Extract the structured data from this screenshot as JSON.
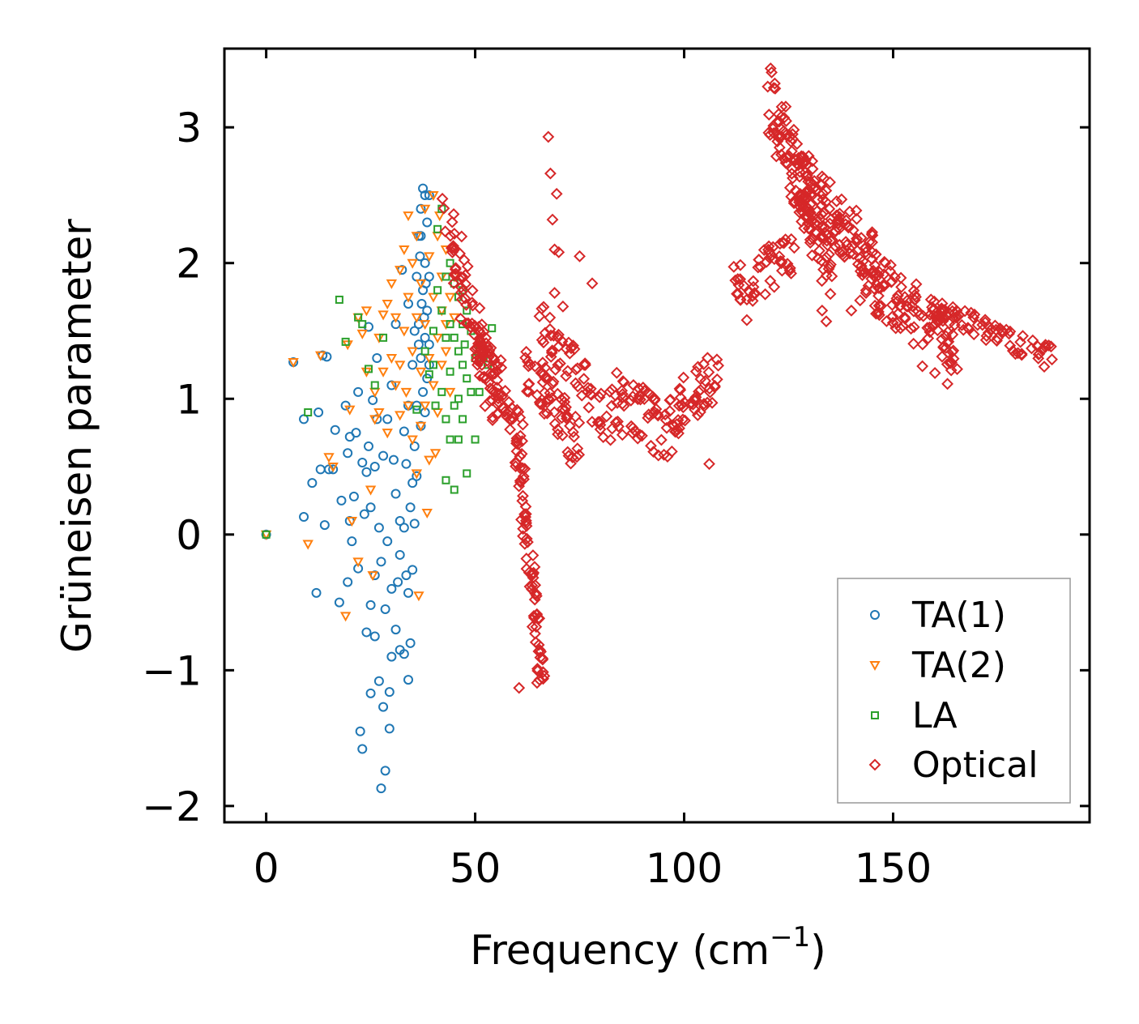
{
  "chart_data": {
    "type": "scatter",
    "title": "",
    "xlabel": "Frequency (cm",
    "xlabel_sup": "−1",
    "xlabel_close": ")",
    "ylabel": "Grüneisen parameter",
    "xlim": [
      -10,
      197
    ],
    "ylim": [
      -2.12,
      3.58
    ],
    "xticks": [
      0,
      50,
      100,
      150
    ],
    "xtick_labels": [
      "0",
      "50",
      "100",
      "150"
    ],
    "yticks": [
      -2,
      -1,
      0,
      1,
      2,
      3
    ],
    "ytick_labels": [
      "−2",
      "−1",
      "0",
      "1",
      "2",
      "3"
    ],
    "legend_position": "lower-right",
    "series": [
      {
        "name": "TA(1)",
        "marker": "circle",
        "color": "#1f77b4",
        "points": [
          [
            0,
            0
          ],
          [
            6.5,
            1.27
          ],
          [
            9,
            0.85
          ],
          [
            9,
            0.13
          ],
          [
            11,
            0.38
          ],
          [
            12,
            -0.43
          ],
          [
            12.5,
            0.9
          ],
          [
            13,
            0.48
          ],
          [
            13.5,
            1.32
          ],
          [
            14,
            0.07
          ],
          [
            14.5,
            1.31
          ],
          [
            15,
            0.48
          ],
          [
            16,
            0.48
          ],
          [
            16.5,
            0.77
          ],
          [
            17.5,
            -0.5
          ],
          [
            18,
            0.25
          ],
          [
            19,
            0.95
          ],
          [
            19.5,
            0.6
          ],
          [
            19.5,
            -0.35
          ],
          [
            20,
            0.72
          ],
          [
            20,
            0.1
          ],
          [
            20.5,
            -0.05
          ],
          [
            21,
            0.28
          ],
          [
            21.5,
            0.75
          ],
          [
            22,
            1.05
          ],
          [
            22,
            -0.25
          ],
          [
            22.5,
            -1.45
          ],
          [
            23,
            0.53
          ],
          [
            23,
            -1.58
          ],
          [
            23.5,
            0.15
          ],
          [
            24,
            0.46
          ],
          [
            24,
            -0.72
          ],
          [
            24.5,
            1.53
          ],
          [
            24.5,
            0.65
          ],
          [
            25,
            0.2
          ],
          [
            25,
            -0.52
          ],
          [
            25,
            -1.17
          ],
          [
            25.5,
            0.99
          ],
          [
            26,
            0.5
          ],
          [
            26,
            -0.3
          ],
          [
            26,
            -0.75
          ],
          [
            26.5,
            1.3
          ],
          [
            26.5,
            0.85
          ],
          [
            27,
            -1.08
          ],
          [
            27,
            0.05
          ],
          [
            27.5,
            -0.2
          ],
          [
            27.5,
            -1.87
          ],
          [
            28,
            0.58
          ],
          [
            28,
            -1.27
          ],
          [
            28.5,
            -0.55
          ],
          [
            28.5,
            -1.74
          ],
          [
            29,
            0.85
          ],
          [
            29,
            -0.05
          ],
          [
            29.5,
            -1.43
          ],
          [
            29.5,
            -1.16
          ],
          [
            30,
            1.1
          ],
          [
            30,
            -0.4
          ],
          [
            30,
            -0.9
          ],
          [
            30.5,
            0.55
          ],
          [
            31,
            1.55
          ],
          [
            31,
            0.3
          ],
          [
            31,
            -0.7
          ],
          [
            31.5,
            -0.35
          ],
          [
            32,
            -0.85
          ],
          [
            32,
            0.1
          ],
          [
            32,
            -0.15
          ],
          [
            32.5,
            1.95
          ],
          [
            33,
            0.76
          ],
          [
            33,
            -0.88
          ],
          [
            33,
            0.05
          ],
          [
            33.5,
            0.52
          ],
          [
            33.5,
            -0.3
          ],
          [
            34,
            1.7
          ],
          [
            34,
            -0.43
          ],
          [
            34,
            -1.07
          ],
          [
            34,
            0.95
          ],
          [
            34.5,
            0.2
          ],
          [
            34.5,
            -0.8
          ],
          [
            35,
            0.38
          ],
          [
            35,
            1.25
          ],
          [
            35,
            -0.26
          ],
          [
            35.5,
            1.5
          ],
          [
            35.5,
            0.65
          ],
          [
            35.5,
            0.08
          ],
          [
            36,
            1.9
          ],
          [
            36,
            0.95
          ],
          [
            36,
            0.43
          ],
          [
            36.5,
            1.55
          ],
          [
            36.5,
            2.2
          ],
          [
            37,
            1.3
          ],
          [
            37,
            0.8
          ],
          [
            37,
            2.4
          ],
          [
            37.5,
            1.8
          ],
          [
            37.5,
            1.05
          ],
          [
            37.5,
            2.55
          ],
          [
            38,
            2.0
          ],
          [
            38,
            1.45
          ],
          [
            38,
            0.9
          ],
          [
            38.5,
            2.3
          ],
          [
            38.5,
            1.65
          ],
          [
            38.5,
            1.15
          ],
          [
            39,
            2.5
          ],
          [
            39,
            1.9
          ],
          [
            39,
            1.4
          ],
          [
            39,
            1.25
          ],
          [
            36.8,
            2.05
          ],
          [
            37.2,
            1.7
          ],
          [
            37.8,
            1.6
          ],
          [
            38.2,
            1.85
          ],
          [
            36.5,
            1.4
          ],
          [
            37,
            2.2
          ],
          [
            38,
            2.5
          ]
        ]
      },
      {
        "name": "TA(2)",
        "marker": "triangle_down",
        "color": "#ff7f0e",
        "points": [
          [
            0,
            0
          ],
          [
            6.5,
            1.27
          ],
          [
            10,
            -0.07
          ],
          [
            13,
            1.32
          ],
          [
            15,
            0.57
          ],
          [
            16,
            0.5
          ],
          [
            19,
            -0.6
          ],
          [
            19.5,
            1.4
          ],
          [
            20,
            0.92
          ],
          [
            20.5,
            0.1
          ],
          [
            22,
            -0.2
          ],
          [
            22,
            1.6
          ],
          [
            23,
            1.48
          ],
          [
            24,
            1.2
          ],
          [
            24,
            1.65
          ],
          [
            25,
            0.33
          ],
          [
            25.5,
            -0.3
          ],
          [
            26,
            1.05
          ],
          [
            26,
            0.85
          ],
          [
            27,
            0.9
          ],
          [
            27,
            1.45
          ],
          [
            28,
            1.62
          ],
          [
            28,
            1.2
          ],
          [
            29,
            1.7
          ],
          [
            29,
            0.75
          ],
          [
            30,
            1.85
          ],
          [
            30,
            1.3
          ],
          [
            31,
            1.1
          ],
          [
            31,
            1.6
          ],
          [
            32,
            1.25
          ],
          [
            32,
            1.95
          ],
          [
            32,
            0.88
          ],
          [
            33,
            1.5
          ],
          [
            33,
            2.1
          ],
          [
            33.5,
            1.05
          ],
          [
            34,
            1.75
          ],
          [
            34,
            2.35
          ],
          [
            34,
            0.95
          ],
          [
            35,
            1.35
          ],
          [
            35,
            0.7
          ],
          [
            35,
            2.0
          ],
          [
            36,
            1.6
          ],
          [
            36,
            2.2
          ],
          [
            36,
            0.45
          ],
          [
            36.5,
            -0.45
          ],
          [
            37,
            1.2
          ],
          [
            37,
            1.85
          ],
          [
            37,
            0.8
          ],
          [
            38,
            2.4
          ],
          [
            38,
            1.55
          ],
          [
            38,
            0.95
          ],
          [
            38.5,
            0.16
          ],
          [
            39,
            2.05
          ],
          [
            39,
            1.3
          ],
          [
            39,
            0.55
          ],
          [
            40,
            2.5
          ],
          [
            40,
            1.75
          ],
          [
            40,
            1.1
          ],
          [
            40.5,
            0.6
          ],
          [
            41,
            2.2
          ],
          [
            41,
            1.45
          ],
          [
            41,
            0.9
          ],
          [
            41.5,
            2.35
          ],
          [
            42,
            1.65
          ],
          [
            42,
            1.9
          ],
          [
            42,
            1.25
          ],
          [
            43,
            2.1
          ],
          [
            43,
            1.55
          ],
          [
            43,
            1.35
          ],
          [
            44,
            1.75
          ],
          [
            44,
            1.05
          ],
          [
            45,
            1.6
          ],
          [
            45,
            1.9
          ]
        ]
      },
      {
        "name": "LA",
        "marker": "square",
        "color": "#2ca02c",
        "points": [
          [
            0,
            0
          ],
          [
            10,
            0.9
          ],
          [
            17.5,
            1.73
          ],
          [
            19,
            1.42
          ],
          [
            22,
            1.6
          ],
          [
            23,
            1.55
          ],
          [
            24.5,
            1.22
          ],
          [
            26,
            1.1
          ],
          [
            28,
            1.45
          ],
          [
            36,
            0.92
          ],
          [
            38,
            1.35
          ],
          [
            39,
            1.18
          ],
          [
            40,
            1.5
          ],
          [
            40,
            1.25
          ],
          [
            40.5,
            0.95
          ],
          [
            41,
            2.25
          ],
          [
            41,
            1.8
          ],
          [
            42,
            2.4
          ],
          [
            42,
            1.65
          ],
          [
            42,
            1.05
          ],
          [
            43,
            1.9
          ],
          [
            43,
            1.45
          ],
          [
            43,
            0.85
          ],
          [
            43,
            0.4
          ],
          [
            44,
            2.0
          ],
          [
            44,
            1.55
          ],
          [
            44,
            1.2
          ],
          [
            44,
            0.7
          ],
          [
            45,
            1.85
          ],
          [
            45,
            1.45
          ],
          [
            45,
            0.95
          ],
          [
            45,
            0.33
          ],
          [
            46,
            1.75
          ],
          [
            46,
            1.35
          ],
          [
            46,
            1.0
          ],
          [
            46,
            0.7
          ],
          [
            47,
            1.8
          ],
          [
            47,
            1.55
          ],
          [
            47,
            1.25
          ],
          [
            47,
            0.85
          ],
          [
            47.5,
            1.4
          ],
          [
            48,
            1.65
          ],
          [
            48,
            1.15
          ],
          [
            48,
            0.45
          ],
          [
            49,
            1.5
          ],
          [
            49,
            1.05
          ],
          [
            50,
            1.3
          ],
          [
            50,
            0.7
          ],
          [
            51,
            1.05
          ],
          [
            51,
            1.4
          ],
          [
            52,
            1.3
          ],
          [
            53,
            1.25
          ],
          [
            54,
            1.52
          ]
        ]
      },
      {
        "name": "Optical",
        "marker": "diamond",
        "color": "#d62728",
        "ridges": [
          {
            "x0": 43,
            "x1": 55,
            "y0": 2.3,
            "y1": 0.95,
            "spread": 0.45,
            "n": 80
          },
          {
            "x0": 50,
            "x1": 62,
            "y0": 1.55,
            "y1": 0.6,
            "spread": 0.35,
            "n": 55
          },
          {
            "x0": 60,
            "x1": 66,
            "y0": 0.7,
            "y1": -1.1,
            "spread": 0.2,
            "n": 75
          },
          {
            "x0": 61,
            "x1": 75,
            "y0": 1.3,
            "y1": 0.65,
            "spread": 0.4,
            "n": 60
          },
          {
            "x0": 65,
            "x1": 83,
            "y0": 1.55,
            "y1": 0.85,
            "spread": 0.4,
            "n": 60
          },
          {
            "x0": 83,
            "x1": 98,
            "y0": 1.1,
            "y1": 0.85,
            "spread": 0.22,
            "n": 40
          },
          {
            "x0": 84,
            "x1": 97,
            "y0": 0.78,
            "y1": 0.6,
            "spread": 0.12,
            "n": 18
          },
          {
            "x0": 96,
            "x1": 108,
            "y0": 0.85,
            "y1": 1.2,
            "spread": 0.35,
            "n": 45
          },
          {
            "x0": 112,
            "x1": 126,
            "y0": 1.8,
            "y1": 2.1,
            "spread": 0.35,
            "n": 50
          },
          {
            "x0": 120,
            "x1": 136,
            "y0": 3.25,
            "y1": 1.9,
            "spread": 0.5,
            "n": 130
          },
          {
            "x0": 128,
            "x1": 146,
            "y0": 2.6,
            "y1": 2.0,
            "spread": 0.45,
            "n": 100
          },
          {
            "x0": 142,
            "x1": 165,
            "y0": 1.95,
            "y1": 1.4,
            "spread": 0.45,
            "n": 110
          },
          {
            "x0": 160,
            "x1": 188,
            "y0": 1.65,
            "y1": 1.3,
            "spread": 0.18,
            "n": 70
          }
        ],
        "points": [
          [
            67.5,
            2.93
          ],
          [
            68,
            2.66
          ],
          [
            68.5,
            2.32
          ],
          [
            69.5,
            2.51
          ],
          [
            69,
            2.1
          ],
          [
            70,
            2.08
          ],
          [
            75,
            2.05
          ],
          [
            78,
            1.85
          ],
          [
            120,
            3.3
          ],
          [
            188,
            1.29
          ],
          [
            84,
            0.97
          ],
          [
            115,
            1.58
          ],
          [
            163,
            1.11
          ],
          [
            160,
            1.19
          ],
          [
            157,
            1.24
          ],
          [
            60.5,
            -1.13
          ],
          [
            106,
            0.52
          ],
          [
            69,
            1.78
          ],
          [
            71,
            1.68
          ],
          [
            140,
            1.65
          ],
          [
            133,
            1.65
          ],
          [
            134,
            1.57
          ]
        ]
      }
    ]
  }
}
